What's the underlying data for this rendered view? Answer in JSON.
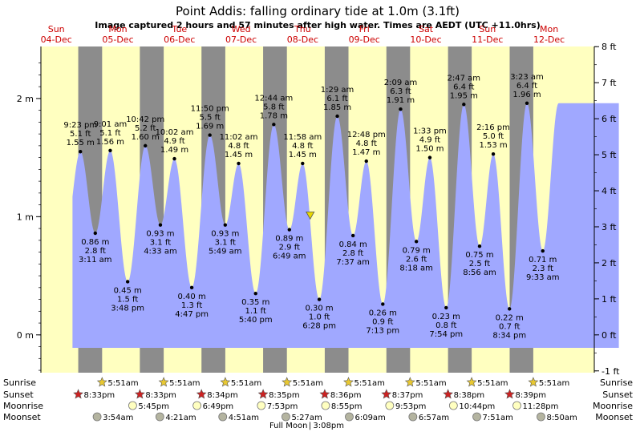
{
  "chart_data": {
    "type": "area",
    "title": "Point Addis: falling  ordinary tide at 1.0m (3.1ft)",
    "subtitle": "Image captured 2 hours and 57 minutes after high water. Times are AEDT (UTC +11.0hrs)",
    "days": [
      {
        "weekday": "Sun",
        "date": "04-Dec"
      },
      {
        "weekday": "Mon",
        "date": "05-Dec"
      },
      {
        "weekday": "Tue",
        "date": "06-Dec"
      },
      {
        "weekday": "Wed",
        "date": "07-Dec"
      },
      {
        "weekday": "Thu",
        "date": "08-Dec"
      },
      {
        "weekday": "Fri",
        "date": "09-Dec"
      },
      {
        "weekday": "Sat",
        "date": "10-Dec"
      },
      {
        "weekday": "Sun",
        "date": "11-Dec"
      },
      {
        "weekday": "Mon",
        "date": "12-Dec"
      }
    ],
    "y_left_ticks": [
      {
        "value": 0,
        "label": "0 m"
      },
      {
        "value": 1,
        "label": "1 m"
      },
      {
        "value": 2,
        "label": "2 m"
      }
    ],
    "y_right_ticks_ft": [
      "-1 ft",
      "0 ft",
      "1 ft",
      "2 ft",
      "3 ft",
      "4 ft",
      "5 ft",
      "6 ft",
      "7 ft",
      "8 ft"
    ],
    "ylim_m": [
      -0.32,
      2.44
    ],
    "tides": [
      {
        "date": "Sun 04-Dec",
        "time": "9:23 pm",
        "m": 1.55,
        "m_label": "1.55 m",
        "ft_label": "5.1 ft",
        "type": "high"
      },
      {
        "date": "Mon 05-Dec",
        "time": "3:11 am",
        "m": 0.86,
        "m_label": "0.86 m",
        "ft_label": "2.8 ft",
        "type": "low"
      },
      {
        "date": "Mon 05-Dec",
        "time": "9:01 am",
        "m": 1.56,
        "m_label": "1.56 m",
        "ft_label": "5.1 ft",
        "type": "high"
      },
      {
        "date": "Mon 05-Dec",
        "time": "3:48 pm",
        "m": 0.45,
        "m_label": "0.45 m",
        "ft_label": "1.5 ft",
        "type": "low"
      },
      {
        "date": "Mon 05-Dec",
        "time": "10:42 pm",
        "m": 1.6,
        "m_label": "1.60 m",
        "ft_label": "5.2 ft",
        "type": "high"
      },
      {
        "date": "Tue 06-Dec",
        "time": "4:33 am",
        "m": 0.93,
        "m_label": "0.93 m",
        "ft_label": "3.1 ft",
        "type": "low"
      },
      {
        "date": "Tue 06-Dec",
        "time": "10:02 am",
        "m": 1.49,
        "m_label": "1.49 m",
        "ft_label": "4.9 ft",
        "type": "high"
      },
      {
        "date": "Tue 06-Dec",
        "time": "4:47 pm",
        "m": 0.4,
        "m_label": "0.40 m",
        "ft_label": "1.3 ft",
        "type": "low"
      },
      {
        "date": "Tue 06-Dec",
        "time": "11:50 pm",
        "m": 1.69,
        "m_label": "1.69 m",
        "ft_label": "5.5 ft",
        "type": "high"
      },
      {
        "date": "Wed 07-Dec",
        "time": "5:49 am",
        "m": 0.93,
        "m_label": "0.93 m",
        "ft_label": "3.1 ft",
        "type": "low"
      },
      {
        "date": "Wed 07-Dec",
        "time": "11:02 am",
        "m": 1.45,
        "m_label": "1.45 m",
        "ft_label": "4.8 ft",
        "type": "high"
      },
      {
        "date": "Wed 07-Dec",
        "time": "5:40 pm",
        "m": 0.35,
        "m_label": "0.35 m",
        "ft_label": "1.1 ft",
        "type": "low"
      },
      {
        "date": "Thu 08-Dec",
        "time": "12:44 am",
        "m": 1.78,
        "m_label": "1.78 m",
        "ft_label": "5.8 ft",
        "type": "high"
      },
      {
        "date": "Thu 08-Dec",
        "time": "6:49 am",
        "m": 0.89,
        "m_label": "0.89 m",
        "ft_label": "2.9 ft",
        "type": "low"
      },
      {
        "date": "Thu 08-Dec",
        "time": "11:58 am",
        "m": 1.45,
        "m_label": "1.45 m",
        "ft_label": "4.8 ft",
        "type": "high"
      },
      {
        "date": "Thu 08-Dec",
        "time": "6:28 pm",
        "m": 0.3,
        "m_label": "0.30 m",
        "ft_label": "1.0 ft",
        "type": "low"
      },
      {
        "date": "Fri 09-Dec",
        "time": "1:29 am",
        "m": 1.85,
        "m_label": "1.85 m",
        "ft_label": "6.1 ft",
        "type": "high"
      },
      {
        "date": "Fri 09-Dec",
        "time": "7:37 am",
        "m": 0.84,
        "m_label": "0.84 m",
        "ft_label": "2.8 ft",
        "type": "low"
      },
      {
        "date": "Fri 09-Dec",
        "time": "12:48 pm",
        "m": 1.47,
        "m_label": "1.47 m",
        "ft_label": "4.8 ft",
        "type": "high"
      },
      {
        "date": "Fri 09-Dec",
        "time": "7:13 pm",
        "m": 0.26,
        "m_label": "0.26 m",
        "ft_label": "0.9 ft",
        "type": "low"
      },
      {
        "date": "Sat 10-Dec",
        "time": "2:09 am",
        "m": 1.91,
        "m_label": "1.91 m",
        "ft_label": "6.3 ft",
        "type": "high"
      },
      {
        "date": "Sat 10-Dec",
        "time": "8:18 am",
        "m": 0.79,
        "m_label": "0.79 m",
        "ft_label": "2.6 ft",
        "type": "low"
      },
      {
        "date": "Sat 10-Dec",
        "time": "1:33 pm",
        "m": 1.5,
        "m_label": "1.50 m",
        "ft_label": "4.9 ft",
        "type": "high"
      },
      {
        "date": "Sat 10-Dec",
        "time": "7:54 pm",
        "m": 0.23,
        "m_label": "0.23 m",
        "ft_label": "0.8 ft",
        "type": "low"
      },
      {
        "date": "Sun 11-Dec",
        "time": "2:47 am",
        "m": 1.95,
        "m_label": "1.95 m",
        "ft_label": "6.4 ft",
        "type": "high"
      },
      {
        "date": "Sun 11-Dec",
        "time": "8:56 am",
        "m": 0.75,
        "m_label": "0.75 m",
        "ft_label": "2.5 ft",
        "type": "low"
      },
      {
        "date": "Sun 11-Dec",
        "time": "2:16 pm",
        "m": 1.53,
        "m_label": "1.53 m",
        "ft_label": "5.0 ft",
        "type": "high"
      },
      {
        "date": "Sun 11-Dec",
        "time": "8:34 pm",
        "m": 0.22,
        "m_label": "0.22 m",
        "ft_label": "0.7 ft",
        "type": "low"
      },
      {
        "date": "Mon 12-Dec",
        "time": "3:23 am",
        "m": 1.96,
        "m_label": "1.96 m",
        "ft_label": "6.4 ft",
        "type": "high"
      },
      {
        "date": "Mon 12-Dec",
        "time": "9:33 am",
        "m": 0.71,
        "m_label": "0.71 m",
        "ft_label": "2.3 ft",
        "type": "low"
      }
    ],
    "current": {
      "date": "Thu 08-Dec",
      "time": "2:55 pm",
      "m": 1.0
    },
    "bottom_rows": {
      "labels": [
        "Sunrise",
        "Sunset",
        "Moonrise",
        "Moonset"
      ],
      "sunrise": [
        {
          "date": "Mon 05-Dec",
          "time": "5:51am"
        },
        {
          "date": "Tue 06-Dec",
          "time": "5:51am"
        },
        {
          "date": "Wed 07-Dec",
          "time": "5:51am"
        },
        {
          "date": "Thu 08-Dec",
          "time": "5:51am"
        },
        {
          "date": "Fri 09-Dec",
          "time": "5:51am"
        },
        {
          "date": "Sat 10-Dec",
          "time": "5:51am"
        },
        {
          "date": "Sun 11-Dec",
          "time": "5:51am"
        },
        {
          "date": "Mon 12-Dec",
          "time": "5:51am"
        }
      ],
      "sunset": [
        {
          "date": "Sun 04-Dec",
          "time": "8:33pm"
        },
        {
          "date": "Mon 05-Dec",
          "time": "8:33pm"
        },
        {
          "date": "Tue 06-Dec",
          "time": "8:34pm"
        },
        {
          "date": "Wed 07-Dec",
          "time": "8:35pm"
        },
        {
          "date": "Thu 08-Dec",
          "time": "8:36pm"
        },
        {
          "date": "Fri 09-Dec",
          "time": "8:37pm"
        },
        {
          "date": "Sat 10-Dec",
          "time": "8:38pm"
        },
        {
          "date": "Sun 11-Dec",
          "time": "8:39pm"
        }
      ],
      "moonrise": [
        {
          "date": "Mon 05-Dec",
          "time": "5:45pm"
        },
        {
          "date": "Tue 06-Dec",
          "time": "6:49pm"
        },
        {
          "date": "Wed 07-Dec",
          "time": "7:53pm"
        },
        {
          "date": "Thu 08-Dec",
          "time": "8:55pm"
        },
        {
          "date": "Fri 09-Dec",
          "time": "9:53pm"
        },
        {
          "date": "Sat 10-Dec",
          "time": "10:44pm"
        },
        {
          "date": "Sun 11-Dec",
          "time": "11:28pm"
        }
      ],
      "moonset": [
        {
          "date": "Mon 05-Dec",
          "time": "3:54am"
        },
        {
          "date": "Tue 06-Dec",
          "time": "4:21am"
        },
        {
          "date": "Wed 07-Dec",
          "time": "4:51am"
        },
        {
          "date": "Thu 08-Dec",
          "time": "5:27am"
        },
        {
          "date": "Fri 09-Dec",
          "time": "6:09am"
        },
        {
          "date": "Sat 10-Dec",
          "time": "6:57am"
        },
        {
          "date": "Sun 11-Dec",
          "time": "7:51am"
        },
        {
          "date": "Mon 12-Dec",
          "time": "8:50am"
        }
      ],
      "full_moon": {
        "label": "Full Moon",
        "time": "3:08pm",
        "date": "Thu 08-Dec"
      }
    },
    "colors": {
      "day_bg": "#ffffc0",
      "night_bg": "#8c8c8c",
      "water": "#a0a8ff",
      "weekday_text": "#cc0000",
      "sunrise_marker": "#e8c832",
      "sunset_marker": "#cc2222",
      "moonrise_marker": "#ffffc0",
      "moonset_marker": "#b4b4a0",
      "current_marker": "#e8d800"
    }
  }
}
